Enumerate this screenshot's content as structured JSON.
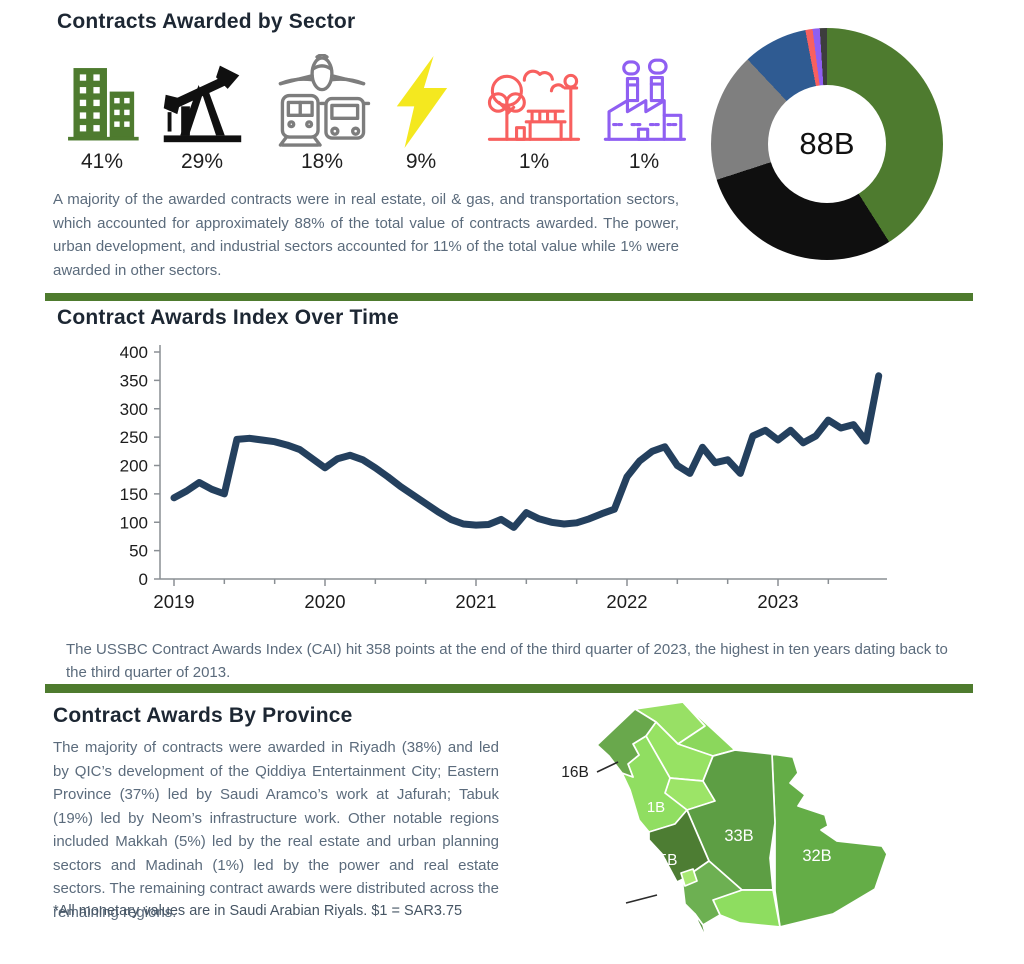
{
  "page": {
    "accent_green": "#4e7b2e",
    "heading_color": "#1d2733",
    "body_text_color": "#5b6b7c"
  },
  "sector_section": {
    "title": "Contracts Awarded by Sector",
    "sectors": [
      {
        "name": "real-estate",
        "percent": "41%",
        "color": "#4e7b2f"
      },
      {
        "name": "oil-gas",
        "percent": "29%",
        "color": "#111111"
      },
      {
        "name": "transportation",
        "percent": "18%",
        "color": "#7d7d7d"
      },
      {
        "name": "power",
        "percent": "9%",
        "color": "#f4e81f"
      },
      {
        "name": "urban-development",
        "percent": "1%",
        "color": "#f8605f"
      },
      {
        "name": "industrial",
        "percent": "1%",
        "color": "#8f5ff2"
      }
    ],
    "paragraph": "A majority of the awarded contracts were in real estate, oil & gas, and transportation sectors, which accounted for approximately 88% of the total value of contracts awarded. The power, urban development, and industrial sectors accounted for 11% of the total value while 1% were awarded in other sectors.",
    "donut_center_label": "88B"
  },
  "cai_section": {
    "title": "Contract Awards Index Over Time",
    "caption": "The USSBC Contract Awards Index (CAI) hit 358 points at the end of the third quarter of 2023, the highest in ten years dating back to the third quarter of 2013."
  },
  "province_section": {
    "title": "Contract Awards By Province",
    "paragraph": "The majority of contracts were awarded in Riyadh (38%) and led by QIC’s development of the Qiddiya Entertainment City; Eastern Province (37%) led by Saudi Aramco’s work at Jafurah; Tabuk (19%) led by Neom’s infrastructure work. Other notable regions included Makkah (5%) led by the real estate and urban planning sectors and Madinah (1%) led by the power and real estate sectors. The remaining contract awards were distributed across the remaining regions.",
    "footnote": "*All monetary values are in Saudi Arabian Riyals. $1 = SAR3.75",
    "map_labels": {
      "tabuk": "16B",
      "madinah": "1B",
      "riyadh": "33B",
      "makkah": "5B",
      "eastern": "32B"
    },
    "map_colors": {
      "tabuk": "#69a84c",
      "jawf": "#98e065",
      "northern": "#8bd75c",
      "hail": "#97e263",
      "qassim": "#9ce467",
      "madinah": "#90de61",
      "riyadh": "#5d9e44",
      "eastern": "#64ad47",
      "najran": "#8edd60",
      "makkah": "#4d7d33",
      "bahah": "#a8e873",
      "asir": "#6db052",
      "jazan": "#55913c"
    }
  },
  "chart_data": [
    {
      "type": "pie",
      "subtype": "donut",
      "title": "Contracts Awarded by Sector",
      "center_label": "88B",
      "legend_position": "none",
      "segments": [
        {
          "label": "Real Estate",
          "value": 41,
          "color": "#4e7b2f"
        },
        {
          "label": "Oil & Gas",
          "value": 29,
          "color": "#0f0f0f"
        },
        {
          "label": "Transportation",
          "value": 18,
          "color": "#7f7f7f"
        },
        {
          "label": "Power",
          "value": 9,
          "color": "#2f5b92"
        },
        {
          "label": "Urban Development",
          "value": 1,
          "color": "#f8605f"
        },
        {
          "label": "Industrial",
          "value": 1,
          "color": "#8f5ff2"
        },
        {
          "label": "Other",
          "value": 1,
          "color": "#3d3d3d"
        }
      ]
    },
    {
      "type": "line",
      "title": "Contract Awards Index Over Time",
      "xlabel": "",
      "ylabel": "",
      "ylim": [
        0,
        400
      ],
      "y_ticks": [
        400,
        350,
        300,
        250,
        200,
        150,
        100,
        50,
        0
      ],
      "x_ticks": [
        "2019",
        "2020",
        "2021",
        "2022",
        "2023"
      ],
      "x_start_year": 2019,
      "points_per_year": 12,
      "grid": false,
      "line_color": "#24405e",
      "values": [
        143,
        155,
        170,
        158,
        150,
        246,
        248,
        245,
        242,
        236,
        228,
        212,
        196,
        212,
        218,
        210,
        196,
        180,
        163,
        148,
        133,
        118,
        105,
        97,
        95,
        96,
        105,
        91,
        117,
        106,
        100,
        97,
        99,
        106,
        115,
        123,
        180,
        208,
        225,
        233,
        200,
        186,
        232,
        205,
        210,
        186,
        252,
        262,
        245,
        262,
        240,
        252,
        280,
        266,
        272,
        243,
        358
      ]
    },
    {
      "type": "heatmap",
      "subtype": "choropleth-map",
      "title": "Contract Awards By Province",
      "regions": [
        {
          "region": "Riyadh",
          "value_label": "33B",
          "share": "38%"
        },
        {
          "region": "Eastern Province",
          "value_label": "32B",
          "share": "37%"
        },
        {
          "region": "Tabuk",
          "value_label": "16B",
          "share": "19%"
        },
        {
          "region": "Makkah",
          "value_label": "5B",
          "share": "5%"
        },
        {
          "region": "Madinah",
          "value_label": "1B",
          "share": "1%"
        }
      ]
    }
  ]
}
